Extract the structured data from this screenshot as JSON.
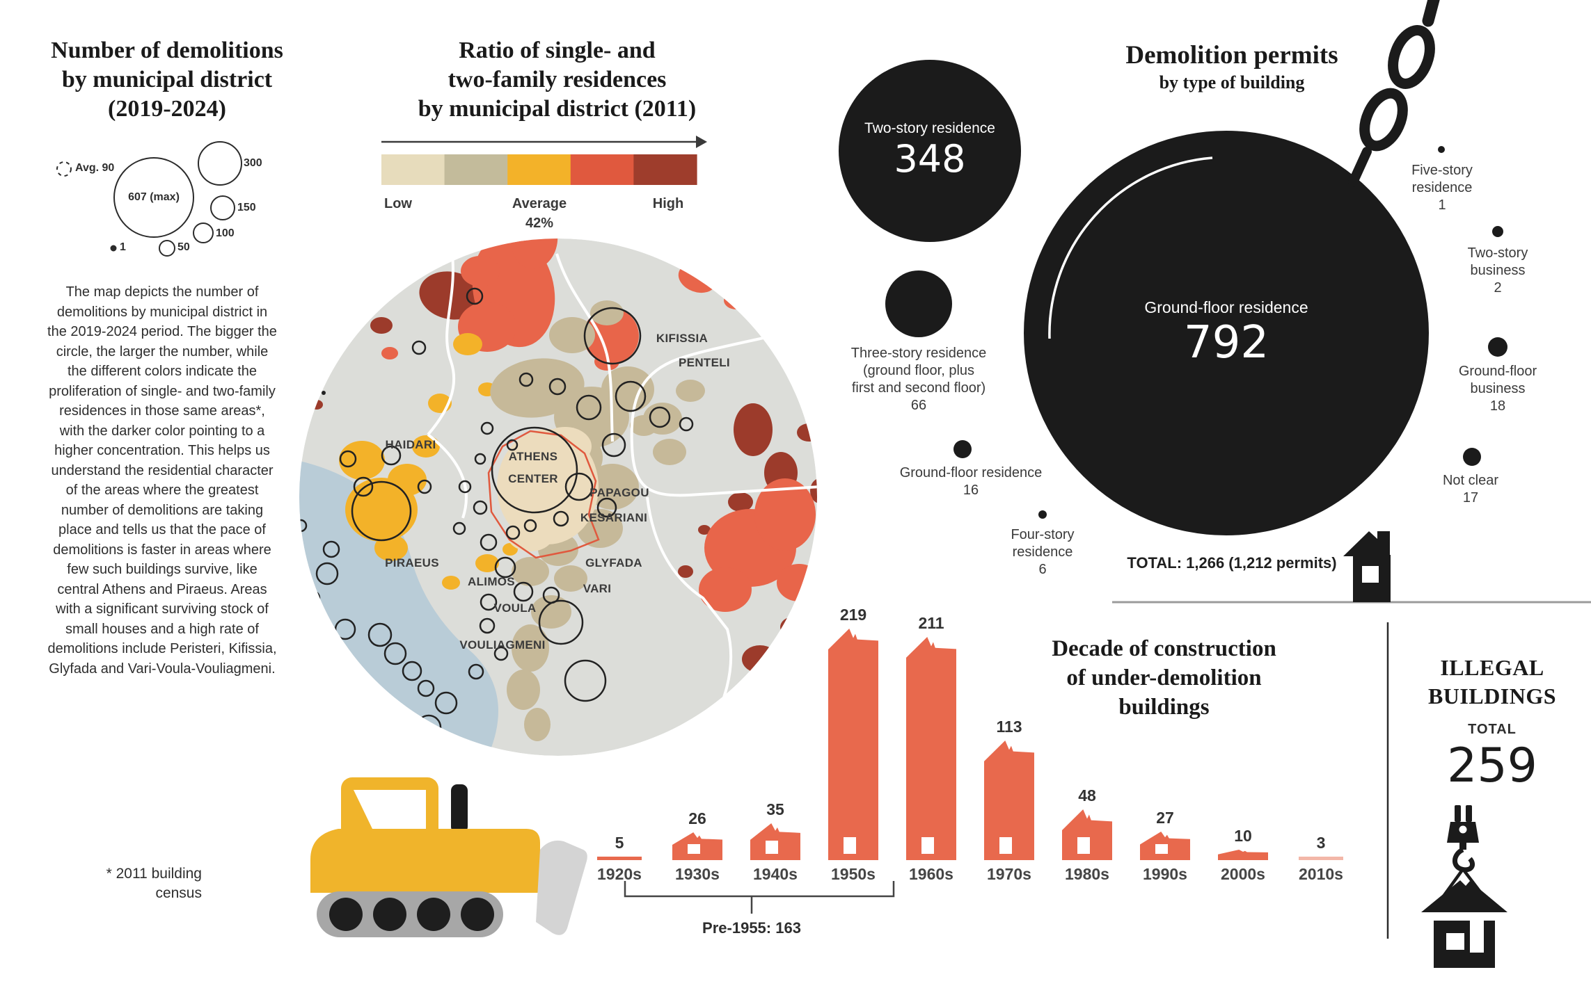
{
  "left_panel": {
    "title_lines": [
      "Number of demolitions",
      "by municipal district",
      "(2019-2024)"
    ],
    "legend": {
      "avg": "Avg. 90",
      "max": "607 (max)",
      "s300": "300",
      "s150": "150",
      "s100": "100",
      "s1": "1",
      "s50": "50"
    },
    "description": "The map depicts the number of demolitions by municipal district in the 2019-2024 period. The bigger the circle, the larger the number, while the different colors indicate the proliferation of single- and two-family residences in those same areas*, with the darker color pointing to a higher concentration. This helps us understand the residential character of the areas where the greatest number of demolitions are taking place and tells us that the pace of demolitions is faster in areas where few such buildings survive, like central Athens and Piraeus. Areas with a significant surviving stock of small houses and a high rate of demolitions include Peristeri, Kifissia, Glyfada and Vari-Voula-Vouliagmeni.",
    "footnote_lines": [
      "* 2011 building",
      "census"
    ]
  },
  "ratio_map": {
    "title_lines": [
      "Ratio of single- and",
      "two-family residences",
      "by municipal district (2011)"
    ],
    "scale": {
      "colors": [
        "#e7dcbc",
        "#c3bb9b",
        "#f3b229",
        "#e0593e",
        "#9e3d2c"
      ],
      "low": "Low",
      "average": "Average",
      "average_value": "42%",
      "high": "High"
    },
    "districts": [
      "HAIDARI",
      "ATHENS",
      "CENTER",
      "PAPAGOU",
      "KESARIANI",
      "PIRAEUS",
      "ALIMOS",
      "GLYFADA",
      "VARI",
      "VOULA",
      "VOULIAGMENI",
      "KIFISSIA",
      "PENTELI"
    ]
  },
  "permits": {
    "title": "Demolition permits",
    "subtitle": "by type of building",
    "bubbles": [
      {
        "label_lines": [
          "Two-story residence"
        ],
        "value": "348"
      },
      {
        "label_lines": [
          "Ground-floor residence"
        ],
        "value": "792"
      },
      {
        "label_lines": [
          "Three-story residence",
          "(ground floor, plus",
          "first and second floor)"
        ],
        "value": "66"
      },
      {
        "label_lines": [
          "Ground-floor residence"
        ],
        "value": "16"
      },
      {
        "label_lines": [
          "Four-story",
          "residence"
        ],
        "value": "6"
      },
      {
        "label_lines": [
          "Five-story",
          "residence"
        ],
        "value": "1"
      },
      {
        "label_lines": [
          "Two-story",
          "business"
        ],
        "value": "2"
      },
      {
        "label_lines": [
          "Ground-floor",
          "business"
        ],
        "value": "18"
      },
      {
        "label_lines": [
          "Not clear"
        ],
        "value": "17"
      }
    ],
    "total": "TOTAL: 1,266  (1,212 permits)"
  },
  "decade_chart": {
    "title_lines": [
      "Decade of construction",
      "of under-demolition",
      "buildings"
    ],
    "annotation": "Pre-1955: 163"
  },
  "illegal_buildings": {
    "title_lines": [
      "ILLEGAL",
      "BUILDINGS"
    ],
    "total_label": "TOTAL",
    "total_value": "259"
  },
  "chart_data": [
    {
      "type": "bubble",
      "title": "Demolition permits by type of building",
      "points": [
        {
          "label": "Ground-floor residence",
          "value": 792
        },
        {
          "label": "Two-story residence",
          "value": 348
        },
        {
          "label": "Three-story residence (ground floor, plus first and second floor)",
          "value": 66
        },
        {
          "label": "Ground-floor business",
          "value": 18
        },
        {
          "label": "Not clear",
          "value": 17
        },
        {
          "label": "Ground-floor residence",
          "value": 16
        },
        {
          "label": "Four-story residence",
          "value": 6
        },
        {
          "label": "Two-story business",
          "value": 2
        },
        {
          "label": "Five-story residence",
          "value": 1
        }
      ],
      "total_note": "TOTAL: 1,266 (1,212 permits)"
    },
    {
      "type": "bar",
      "title": "Decade of construction of under-demolition buildings",
      "categories": [
        "1920s",
        "1930s",
        "1940s",
        "1950s",
        "1960s",
        "1970s",
        "1980s",
        "1990s",
        "2000s",
        "2010s"
      ],
      "values": [
        5,
        26,
        35,
        219,
        211,
        113,
        48,
        27,
        10,
        3
      ],
      "annotation": "Pre-1955: 163",
      "bar_color": "#e8694d",
      "ylim": [
        0,
        230
      ]
    },
    {
      "type": "scale",
      "title": "Ratio of single- and two-family residences by municipal district (2011)",
      "labels": [
        "Low",
        "Average 42%",
        "High"
      ],
      "colors": [
        "#e7dcbc",
        "#c3bb9b",
        "#f3b229",
        "#e0593e",
        "#9e3d2c"
      ]
    },
    {
      "type": "bubble-map-legend",
      "title": "Number of demolitions by municipal district (2019-2024)",
      "legend_values": [
        {
          "label": "Avg.",
          "value": 90
        },
        {
          "label": "max",
          "value": 607
        },
        {
          "label": "",
          "value": 300
        },
        {
          "label": "",
          "value": 150
        },
        {
          "label": "",
          "value": 100
        },
        {
          "label": "",
          "value": 50
        },
        {
          "label": "",
          "value": 1
        }
      ]
    }
  ]
}
